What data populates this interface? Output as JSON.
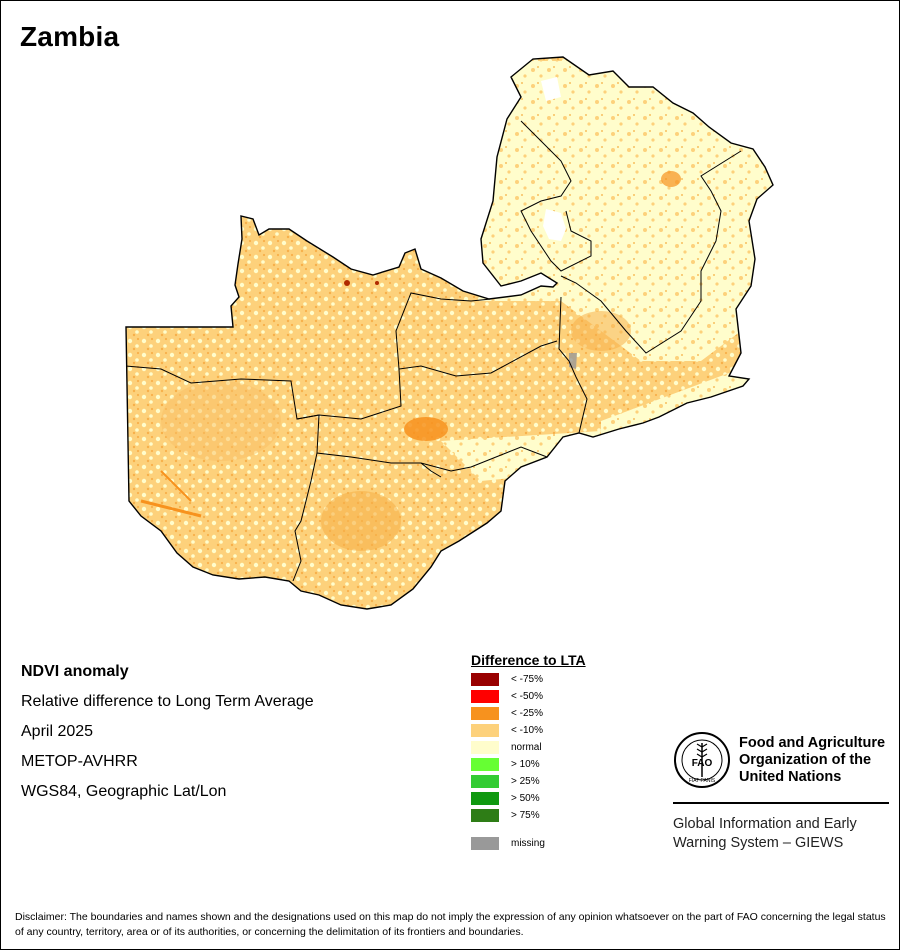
{
  "map": {
    "title": "Zambia"
  },
  "info": {
    "title": "NDVI anomaly",
    "subtitle": "Relative difference to Long Term Average",
    "period": "April 2025",
    "sensor": "METOP-AVHRR",
    "projection": "WGS84, Geographic Lat/Lon"
  },
  "legend": {
    "title": "Difference to LTA",
    "items": [
      {
        "label": "< -75%",
        "color": "#990000"
      },
      {
        "label": "< -50%",
        "color": "#ff0000"
      },
      {
        "label": "< -25%",
        "color": "#f7921e"
      },
      {
        "label": "< -10%",
        "color": "#fdd17b"
      },
      {
        "label": "normal",
        "color": "#fffdcc"
      },
      {
        "label": "> 10%",
        "color": "#66ff33"
      },
      {
        "label": "> 25%",
        "color": "#33cc33"
      },
      {
        "label": "> 50%",
        "color": "#0f990f"
      },
      {
        "label": "> 75%",
        "color": "#2e7d16"
      }
    ],
    "missing": {
      "label": "missing",
      "color": "#999999"
    }
  },
  "fao": {
    "name_line1": "Food and Agriculture",
    "name_line2": "Organization of the",
    "name_line3": "United Nations",
    "giews_line1": "Global Information and Early",
    "giews_line2": "Warning System – GIEWS",
    "logo_letters": "FAO",
    "logo_motto": "FIAT PANIS"
  },
  "disclaimer": "Disclaimer: The boundaries and names shown and the designations used on this map do not imply the expression of any opinion whatsoever on the part of FAO concerning the legal status of any country, territory, area or of its authorities, or concerning the delimitation of its frontiers and boundaries."
}
